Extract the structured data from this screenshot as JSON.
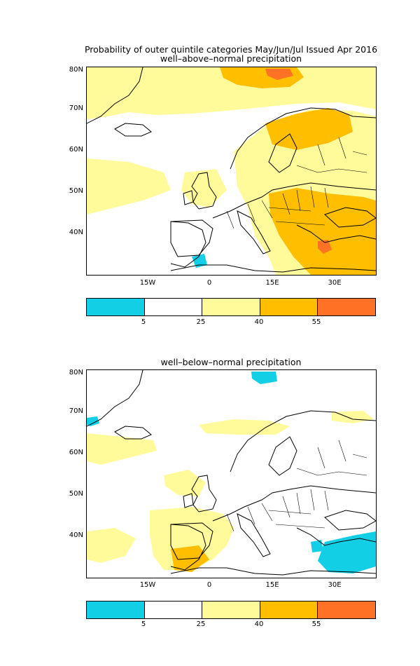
{
  "figure": {
    "title": "Probability of outer quintile categories May/Jun/Jul Issued Apr 2016"
  },
  "maps": [
    {
      "subtitle": "well–above–normal precipitation",
      "lat_labels": [
        "80N",
        "70N",
        "60N",
        "50N",
        "40N"
      ],
      "lon_labels": [
        "15W",
        "0",
        "15E",
        "30E"
      ]
    },
    {
      "subtitle": "well–below–normal precipitation",
      "lat_labels": [
        "80N",
        "70N",
        "60N",
        "50N",
        "40N"
      ],
      "lon_labels": [
        "15W",
        "0",
        "15E",
        "30E"
      ]
    }
  ],
  "colorbar": {
    "labels": [
      "5",
      "25",
      "40",
      "55"
    ],
    "colors": [
      "#12cfe6",
      "#ffffff",
      "#fffa9a",
      "#ffbf00",
      "#ff7225"
    ]
  },
  "palette": {
    "cyan": "#12cfe6",
    "light_yellow": "#fffa9a",
    "orange": "#ffbf00",
    "dark_orange": "#ff7225",
    "coast": "#000000"
  }
}
